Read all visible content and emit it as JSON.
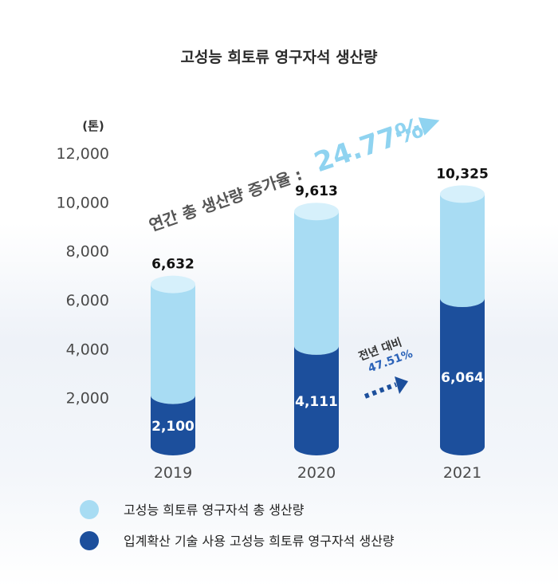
{
  "chart_data": {
    "type": "bar",
    "title": "고성능 희토류 영구자석 생산량",
    "unit": "(톤)",
    "categories": [
      "2019",
      "2020",
      "2021"
    ],
    "ylim": [
      0,
      12000
    ],
    "yticks": [
      "2,000",
      "4,000",
      "6,000",
      "8,000",
      "10,000",
      "12,000"
    ],
    "ytick_values": [
      2000,
      4000,
      6000,
      8000,
      10000,
      12000
    ],
    "series": [
      {
        "name": "고성능 희토류 영구자석 총 생산량",
        "values": [
          6632,
          9613,
          10325
        ],
        "labels": [
          "6,632",
          "9,613",
          "10,325"
        ],
        "color": "#a8dcf3"
      },
      {
        "name": "입계확산 기술 사용 고성능 희토류 영구자석 생산량",
        "values": [
          2100,
          4111,
          6064
        ],
        "labels": [
          "2,100",
          "4,111",
          "6,064"
        ],
        "color": "#1c4f9c"
      }
    ],
    "annotations": {
      "growth_text": "연간 총 생산량 증가율 :",
      "growth_pct": "24.77%",
      "yoy_text": "전년 대비",
      "yoy_pct": "47.51%"
    },
    "grid": false,
    "legend_position": "bottom-left"
  }
}
